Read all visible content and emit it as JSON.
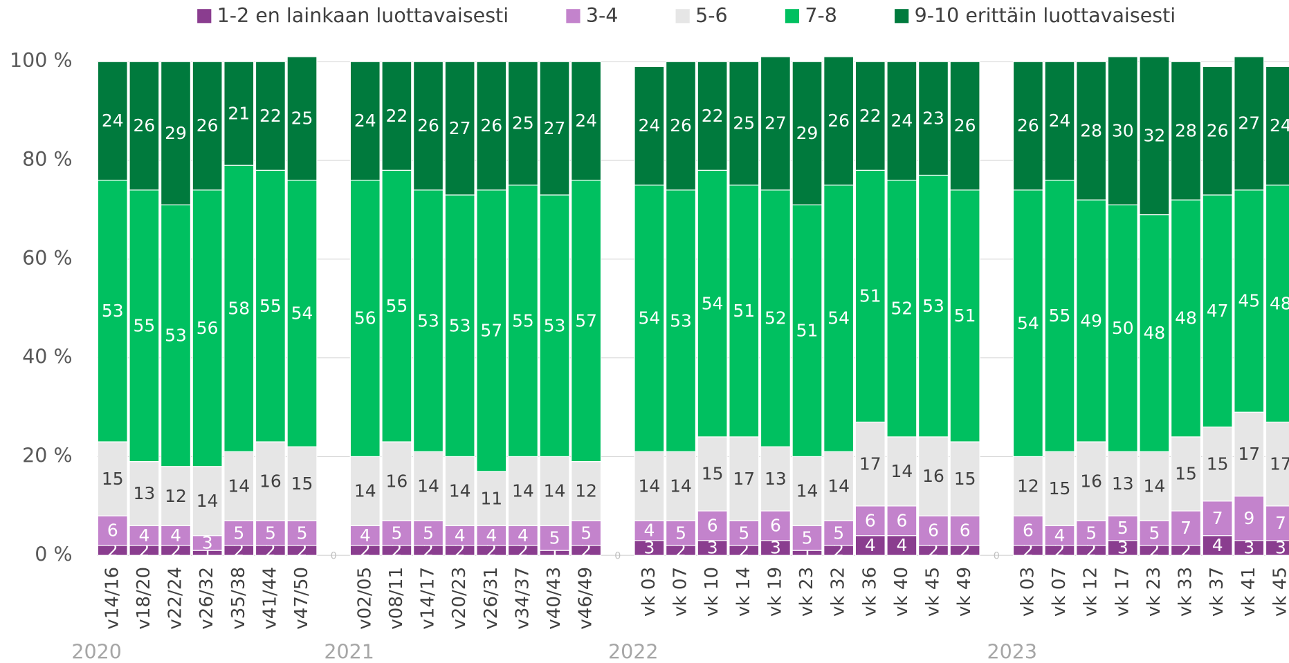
{
  "chart_data": {
    "type": "bar",
    "stacked": true,
    "categories": [
      "v14/16",
      "v18/20",
      "v22/24",
      "v26/32",
      "v35/38",
      "v41/44",
      "v47/50",
      null,
      "v02/05",
      "v08/11",
      "v14/17",
      "v20/23",
      "v26/31",
      "v34/37",
      "v40/43",
      "v46/49",
      null,
      "vk 03",
      "vk 07",
      "vk 10",
      "vk 14",
      "vk 19",
      "vk 23",
      "vk 32",
      "vk 36",
      "vk 40",
      "vk 45",
      "vk 49",
      null,
      "vk 03",
      "vk 07",
      "vk 12",
      "vk 17",
      "vk 23",
      "vk 33",
      "vk 37",
      "vk 41",
      "vk 45"
    ],
    "year_labels": [
      "2020",
      "2021",
      "2022",
      "2023"
    ],
    "series": [
      {
        "name": "1-2 en lainkaan luottavaisesti",
        "color": "#8a3d8f",
        "values": [
          2,
          2,
          2,
          1,
          2,
          2,
          2,
          0,
          2,
          2,
          2,
          2,
          2,
          2,
          1,
          2,
          0,
          3,
          2,
          3,
          2,
          3,
          1,
          2,
          4,
          4,
          2,
          2,
          0,
          2,
          2,
          2,
          3,
          2,
          2,
          4,
          3,
          3
        ]
      },
      {
        "name": "3-4",
        "color": "#c383cc",
        "values": [
          6,
          4,
          4,
          3,
          5,
          5,
          5,
          null,
          4,
          5,
          5,
          4,
          4,
          4,
          5,
          5,
          null,
          4,
          5,
          6,
          5,
          6,
          5,
          5,
          6,
          6,
          6,
          6,
          null,
          6,
          4,
          5,
          5,
          5,
          7,
          7,
          9,
          7
        ]
      },
      {
        "name": "5-6",
        "color": "#e6e6e6",
        "values": [
          15,
          13,
          12,
          14,
          14,
          16,
          15,
          null,
          14,
          16,
          14,
          14,
          11,
          14,
          14,
          12,
          null,
          14,
          14,
          15,
          17,
          13,
          14,
          14,
          17,
          14,
          16,
          15,
          null,
          12,
          15,
          16,
          13,
          14,
          15,
          15,
          17,
          17
        ]
      },
      {
        "name": "7-8",
        "color": "#00c060",
        "values": [
          53,
          55,
          53,
          56,
          58,
          55,
          54,
          null,
          56,
          55,
          53,
          53,
          57,
          55,
          53,
          57,
          null,
          54,
          53,
          54,
          51,
          52,
          51,
          54,
          51,
          52,
          53,
          51,
          null,
          54,
          55,
          49,
          50,
          48,
          48,
          47,
          45,
          48
        ]
      },
      {
        "name": "9-10 erittäin luottavaisesti",
        "color": "#007a3d",
        "values": [
          24,
          26,
          29,
          26,
          21,
          22,
          25,
          null,
          24,
          22,
          26,
          27,
          26,
          25,
          27,
          24,
          null,
          24,
          26,
          22,
          25,
          27,
          29,
          26,
          22,
          24,
          23,
          26,
          null,
          26,
          24,
          28,
          30,
          32,
          28,
          26,
          27,
          24
        ]
      }
    ],
    "ylim": [
      0,
      100
    ],
    "yticks": [
      {
        "value": 0,
        "label": "0 %"
      },
      {
        "value": 20,
        "label": "20 %"
      },
      {
        "value": 40,
        "label": "40 %"
      },
      {
        "value": 60,
        "label": "60 %"
      },
      {
        "value": 80,
        "label": "80 %"
      },
      {
        "value": 100,
        "label": "100 %"
      }
    ],
    "grid": true,
    "legend": "top"
  }
}
